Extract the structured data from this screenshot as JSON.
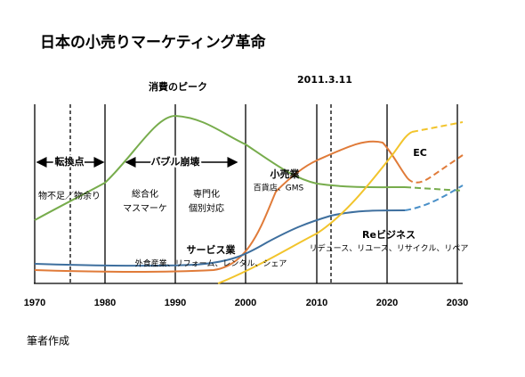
{
  "title": "日本の小売りマーケティング革命",
  "years": [
    "1970",
    "1980",
    "1990",
    "2000",
    "2010",
    "2020",
    "2030"
  ],
  "annotations": {
    "peak": "消費のピーク",
    "date": "2011.3.11",
    "turning_point": "転換点",
    "bubble": "バブル崩壊",
    "shortage": "物不足／物余り",
    "general_1": "総合化",
    "general_2": "マスマーケ",
    "special_1": "専門化",
    "special_2": "個別対応"
  },
  "labels": {
    "retail": "小売業",
    "retail_sub": "百貨店、GMS",
    "ec": "EC",
    "re": "Reビジネス",
    "re_sub": "リデュース、リユース、リサイクル、リペア",
    "service": "サービス業",
    "service_sub": "外食産業、リフォーム、レンタル、シェア"
  },
  "source": "筆者作成"
}
